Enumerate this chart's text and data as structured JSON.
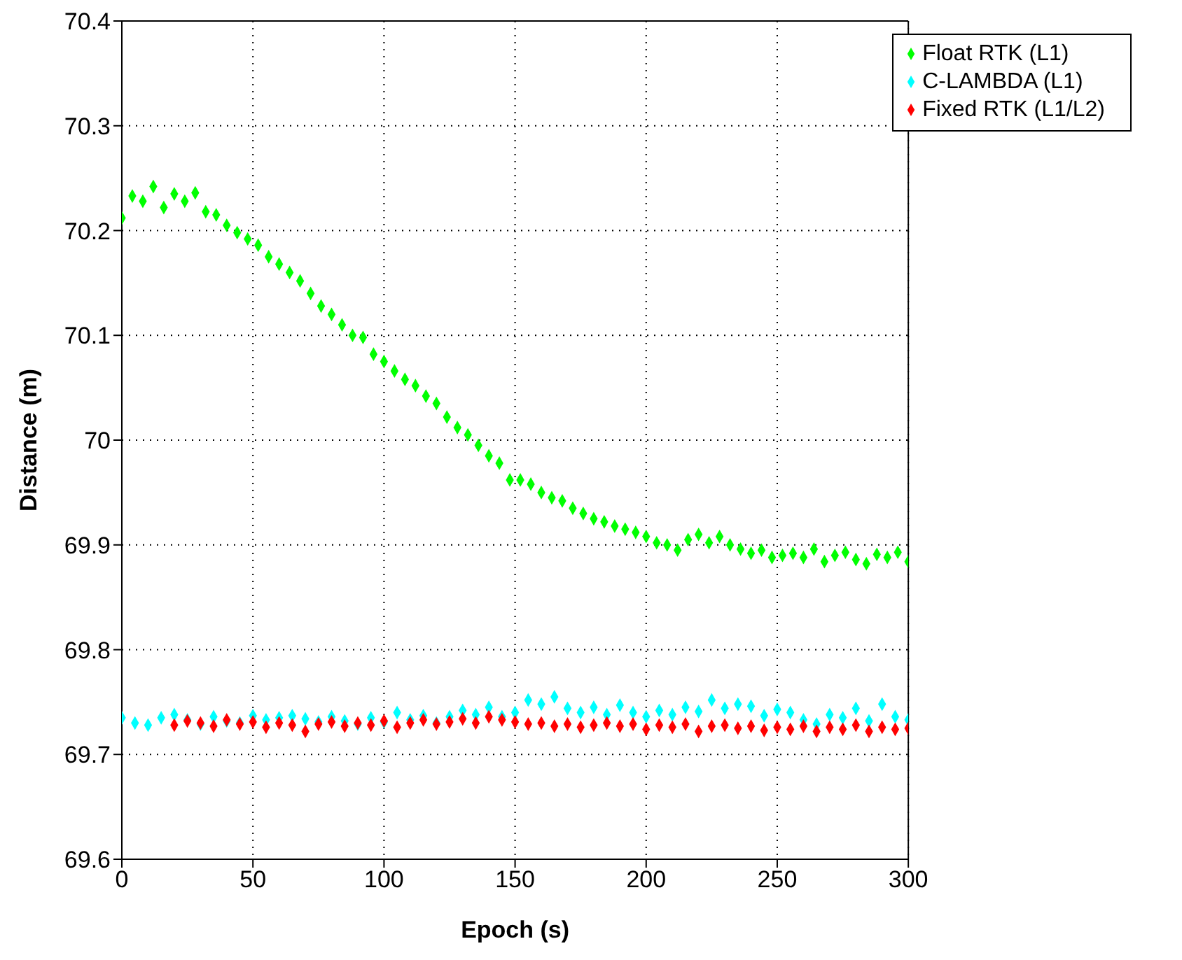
{
  "chart_data": {
    "type": "scatter",
    "xlabel": "Epoch (s)",
    "ylabel": "Distance (m)",
    "xlim": [
      0,
      300
    ],
    "xticks": [
      0,
      50,
      100,
      150,
      200,
      250,
      300
    ],
    "ylim": [
      69.6,
      70.4
    ],
    "yticks": [
      69.6,
      69.7,
      69.8,
      69.9,
      70,
      70.1,
      70.2,
      70.3,
      70.4
    ],
    "grid": true,
    "legend": "top right",
    "marker": "diamond",
    "series": [
      {
        "name": "Float RTK (L1)",
        "color": "#00ff00",
        "x": [
          0,
          4,
          8,
          12,
          16,
          20,
          24,
          28,
          32,
          36,
          40,
          44,
          48,
          52,
          56,
          60,
          64,
          68,
          72,
          76,
          80,
          84,
          88,
          92,
          96,
          100,
          104,
          108,
          112,
          116,
          120,
          124,
          128,
          132,
          136,
          140,
          144,
          148,
          152,
          156,
          160,
          164,
          168,
          172,
          176,
          180,
          184,
          188,
          192,
          196,
          200,
          204,
          208,
          212,
          216,
          220,
          224,
          228,
          232,
          236,
          240,
          244,
          248,
          252,
          256,
          260,
          264,
          268,
          272,
          276,
          280,
          284,
          288,
          292,
          296,
          300
        ],
        "values": [
          70.212,
          70.233,
          70.228,
          70.242,
          70.222,
          70.235,
          70.228,
          70.236,
          70.218,
          70.215,
          70.205,
          70.198,
          70.192,
          70.186,
          70.175,
          70.168,
          70.16,
          70.152,
          70.14,
          70.128,
          70.12,
          70.11,
          70.1,
          70.098,
          70.082,
          70.075,
          70.066,
          70.058,
          70.052,
          70.042,
          70.035,
          70.022,
          70.012,
          70.005,
          69.995,
          69.985,
          69.978,
          69.962,
          69.962,
          69.958,
          69.95,
          69.945,
          69.942,
          69.935,
          69.93,
          69.925,
          69.922,
          69.918,
          69.915,
          69.912,
          69.908,
          69.902,
          69.9,
          69.895,
          69.905,
          69.91,
          69.902,
          69.908,
          69.9,
          69.896,
          69.892,
          69.895,
          69.888,
          69.89,
          69.892,
          69.888,
          69.896,
          69.884,
          69.89,
          69.893,
          69.886,
          69.882,
          69.891,
          69.888,
          69.893,
          69.884
        ]
      },
      {
        "name": "C-LAMBDA (L1)",
        "color": "#00ffff",
        "x": [
          0,
          5,
          10,
          15,
          20,
          25,
          30,
          35,
          40,
          45,
          50,
          55,
          60,
          65,
          70,
          75,
          80,
          85,
          90,
          95,
          100,
          105,
          110,
          115,
          120,
          125,
          130,
          135,
          140,
          145,
          150,
          155,
          160,
          165,
          170,
          175,
          180,
          185,
          190,
          195,
          200,
          205,
          210,
          215,
          220,
          225,
          230,
          235,
          240,
          245,
          250,
          255,
          260,
          265,
          270,
          275,
          280,
          285,
          290,
          295,
          300
        ],
        "values": [
          69.735,
          69.73,
          69.728,
          69.735,
          69.738,
          69.733,
          69.729,
          69.736,
          69.732,
          69.73,
          69.737,
          69.733,
          69.735,
          69.737,
          69.734,
          69.731,
          69.736,
          69.732,
          69.729,
          69.735,
          69.731,
          69.74,
          69.733,
          69.737,
          69.73,
          69.736,
          69.742,
          69.738,
          69.745,
          69.736,
          69.74,
          69.752,
          69.748,
          69.755,
          69.744,
          69.74,
          69.745,
          69.738,
          69.747,
          69.74,
          69.736,
          69.742,
          69.738,
          69.745,
          69.741,
          69.752,
          69.744,
          69.748,
          69.746,
          69.737,
          69.743,
          69.74,
          69.733,
          69.729,
          69.738,
          69.735,
          69.744,
          69.732,
          69.748,
          69.736,
          69.733
        ]
      },
      {
        "name": "Fixed RTK (L1/L2)",
        "color": "#ff0000",
        "x": [
          20,
          25,
          30,
          35,
          40,
          45,
          50,
          55,
          60,
          65,
          70,
          75,
          80,
          85,
          90,
          95,
          100,
          105,
          110,
          115,
          120,
          125,
          130,
          135,
          140,
          145,
          150,
          155,
          160,
          165,
          170,
          175,
          180,
          185,
          190,
          195,
          200,
          205,
          210,
          215,
          220,
          225,
          230,
          235,
          240,
          245,
          250,
          255,
          260,
          265,
          270,
          275,
          280,
          285,
          290,
          295,
          300
        ],
        "values": [
          69.728,
          69.732,
          69.73,
          69.727,
          69.733,
          69.729,
          69.731,
          69.726,
          69.73,
          69.728,
          69.722,
          69.729,
          69.731,
          69.727,
          69.73,
          69.728,
          69.732,
          69.726,
          69.73,
          69.733,
          69.729,
          69.731,
          69.734,
          69.73,
          69.736,
          69.733,
          69.731,
          69.729,
          69.73,
          69.727,
          69.729,
          69.726,
          69.728,
          69.73,
          69.727,
          69.729,
          69.724,
          69.728,
          69.726,
          69.729,
          69.722,
          69.727,
          69.728,
          69.725,
          69.727,
          69.723,
          69.726,
          69.724,
          69.727,
          69.722,
          69.726,
          69.724,
          69.728,
          69.722,
          69.726,
          69.724,
          69.725
        ]
      }
    ]
  }
}
